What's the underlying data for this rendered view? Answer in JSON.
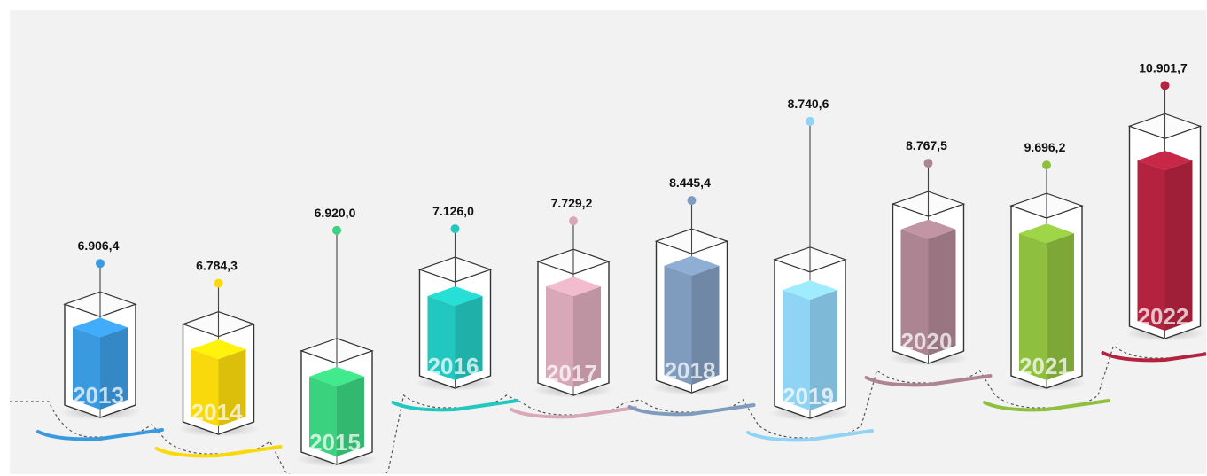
{
  "chart_data": {
    "type": "bar",
    "title": "",
    "xlabel": "",
    "ylabel": "",
    "categories": [
      "2013",
      "2014",
      "2015",
      "2016",
      "2017",
      "2018",
      "2019",
      "2020",
      "2021",
      "2022"
    ],
    "value_labels": [
      "6.906,4",
      "6.784,3",
      "6.920,0",
      "7.126,0",
      "7.729,2",
      "8.445,4",
      "8.740,6",
      "8.767,5",
      "9.696,2",
      "10.901,7"
    ],
    "values": [
      6906.4,
      6784.3,
      6920.0,
      7126.0,
      7729.2,
      8445.4,
      8740.6,
      8767.5,
      9696.2,
      10901.7
    ],
    "colors": [
      "#3a9ae0",
      "#f9d90b",
      "#3ad27e",
      "#22c8c0",
      "#d9a8b8",
      "#7f9bbd",
      "#8fd3f5",
      "#ad8592",
      "#8ebf3f",
      "#b3233f"
    ],
    "bar_fill": [
      0.87,
      0.84,
      0.84,
      0.84,
      0.88,
      0.9,
      0.86,
      0.9,
      0.9,
      0.88
    ],
    "grid": false,
    "legend": "none"
  }
}
